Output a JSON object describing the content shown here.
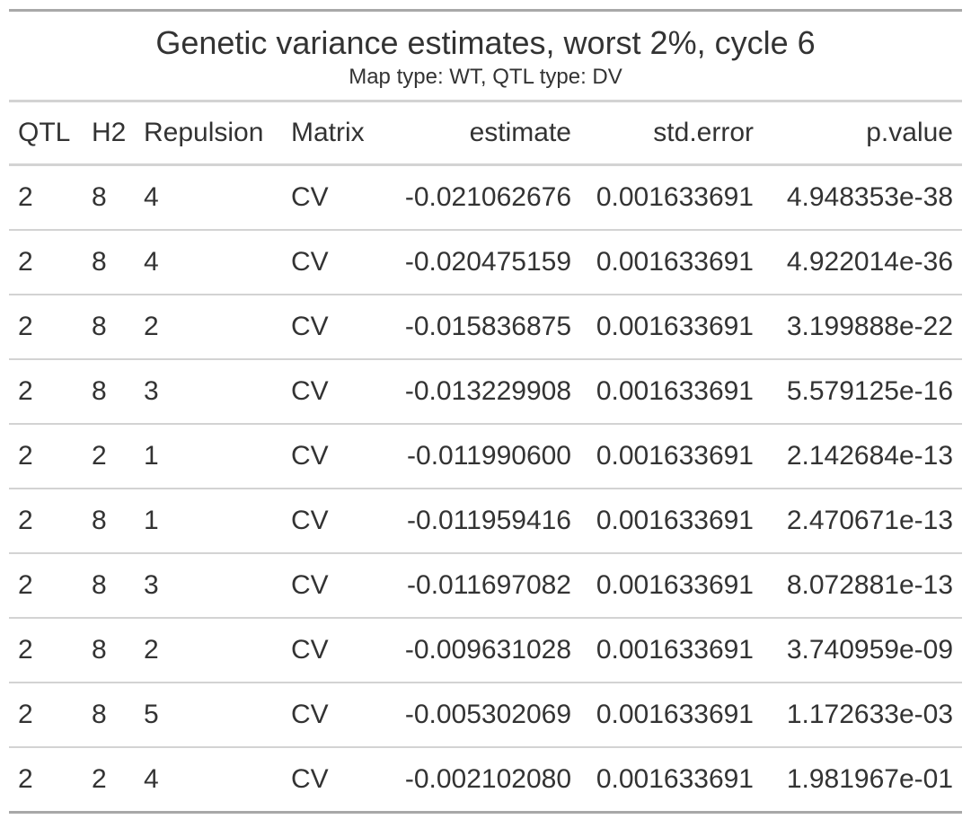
{
  "title": "Genetic variance estimates, worst 2%, cycle 6",
  "subtitle": "Map type: WT, QTL type: DV",
  "columns": [
    "QTL",
    "H2",
    "Repulsion",
    "Matrix",
    "estimate",
    "std.error",
    "p.value"
  ],
  "rows": [
    [
      "2",
      "8",
      "4",
      "CV",
      "-0.021062676",
      "0.001633691",
      "4.948353e-38"
    ],
    [
      "2",
      "8",
      "4",
      "CV",
      "-0.020475159",
      "0.001633691",
      "4.922014e-36"
    ],
    [
      "2",
      "8",
      "2",
      "CV",
      "-0.015836875",
      "0.001633691",
      "3.199888e-22"
    ],
    [
      "2",
      "8",
      "3",
      "CV",
      "-0.013229908",
      "0.001633691",
      "5.579125e-16"
    ],
    [
      "2",
      "2",
      "1",
      "CV",
      "-0.011990600",
      "0.001633691",
      "2.142684e-13"
    ],
    [
      "2",
      "8",
      "1",
      "CV",
      "-0.011959416",
      "0.001633691",
      "2.470671e-13"
    ],
    [
      "2",
      "8",
      "3",
      "CV",
      "-0.011697082",
      "0.001633691",
      "8.072881e-13"
    ],
    [
      "2",
      "8",
      "2",
      "CV",
      "-0.009631028",
      "0.001633691",
      "3.740959e-09"
    ],
    [
      "2",
      "8",
      "5",
      "CV",
      "-0.005302069",
      "0.001633691",
      "1.172633e-03"
    ],
    [
      "2",
      "2",
      "4",
      "CV",
      "-0.002102080",
      "0.001633691",
      "1.981967e-01"
    ]
  ]
}
